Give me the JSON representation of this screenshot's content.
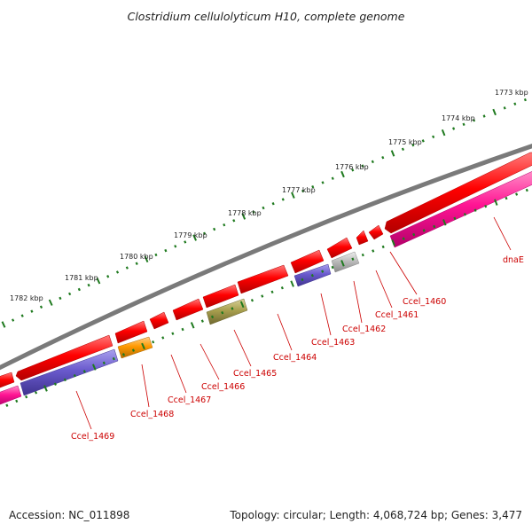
{
  "title": "Clostridium cellulolyticum H10, complete genome",
  "footer": {
    "accession": "Accession: NC_011898",
    "summary": "Topology: circular; Length: 4,068,724 bp; Genes: 3,477"
  },
  "colors": {
    "backbone": "#808080",
    "tick": "#1f7a1f",
    "label": "#cc0000",
    "red_gene": "#ff0000",
    "pink_gene": "#ff1493",
    "purple_gene": "#6a5acd",
    "orange_gene": "#ff9900",
    "olive_gene": "#a89f4e",
    "gray_gene": "#bdbdbd"
  },
  "scale_labels": [
    "1773 kbp",
    "1774 kbp",
    "1775 kbp",
    "1776 kbp",
    "1777 kbp",
    "1778 kbp",
    "1779 kbp",
    "1780 kbp",
    "1781 kbp",
    "1782 kbp"
  ],
  "gene_labels": [
    "dnaE",
    "Ccel_1460",
    "Ccel_1461",
    "Ccel_1462",
    "Ccel_1463",
    "Ccel_1464",
    "Ccel_1465",
    "Ccel_1466",
    "Ccel_1467",
    "Ccel_1468",
    "Ccel_1469"
  ]
}
